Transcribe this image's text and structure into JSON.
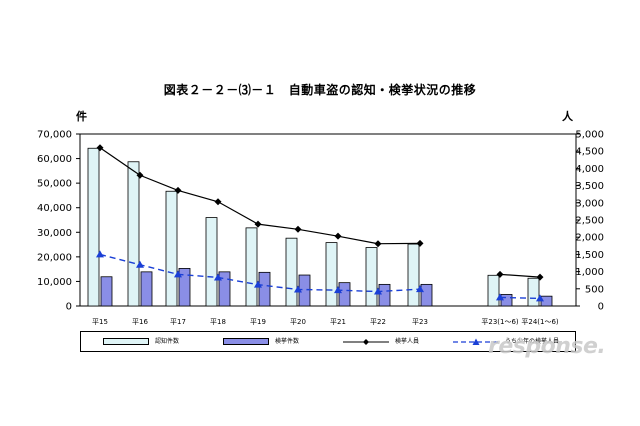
{
  "page": {
    "title": "図表２－２－⑶－１　自動車盗の認知・検挙状況の推移",
    "left_unit": "件",
    "right_unit": "人",
    "watermark": "response."
  },
  "chart_data": {
    "type": "bar",
    "categories": [
      "平15",
      "平16",
      "平17",
      "平18",
      "平19",
      "平20",
      "平21",
      "平22",
      "平23",
      "平23(1～6)",
      "平24(1～6)"
    ],
    "series": [
      {
        "name": "認知件数",
        "kind": "bar",
        "axis": "left",
        "color": "#dff4f6",
        "values": [
          64200,
          58700,
          46700,
          36000,
          31800,
          27600,
          25800,
          23800,
          25200,
          12500,
          11300
        ]
      },
      {
        "name": "検挙件数",
        "kind": "bar",
        "axis": "left",
        "color": "#8a8ee6",
        "values": [
          11900,
          13900,
          15300,
          13900,
          13700,
          12600,
          9500,
          8800,
          8800,
          4700,
          4000
        ]
      },
      {
        "name": "検挙人員",
        "kind": "line",
        "axis": "right",
        "color": "#000000",
        "marker": "diamond",
        "values": [
          4600,
          3800,
          3360,
          3030,
          2380,
          2230,
          2030,
          1810,
          1820,
          920,
          840
        ]
      },
      {
        "name": "うち少年の検挙人員",
        "kind": "dashed-line",
        "axis": "right",
        "color": "#1a3fd6",
        "marker": "triangle",
        "values": [
          1500,
          1200,
          920,
          830,
          620,
          480,
          460,
          420,
          490,
          250,
          220
        ]
      }
    ],
    "y_left": {
      "label": "件",
      "lim": [
        0,
        70000
      ],
      "ticks": [
        "0",
        "10,000",
        "20,000",
        "30,000",
        "40,000",
        "50,000",
        "60,000",
        "70,000"
      ]
    },
    "y_right": {
      "label": "人",
      "lim": [
        0,
        5000
      ],
      "ticks": [
        "0",
        "500",
        "1,000",
        "1,500",
        "2,000",
        "2,500",
        "3,000",
        "3,500",
        "4,000",
        "4,500",
        "5,000"
      ]
    },
    "grid": false,
    "legend_position": "bottom"
  }
}
